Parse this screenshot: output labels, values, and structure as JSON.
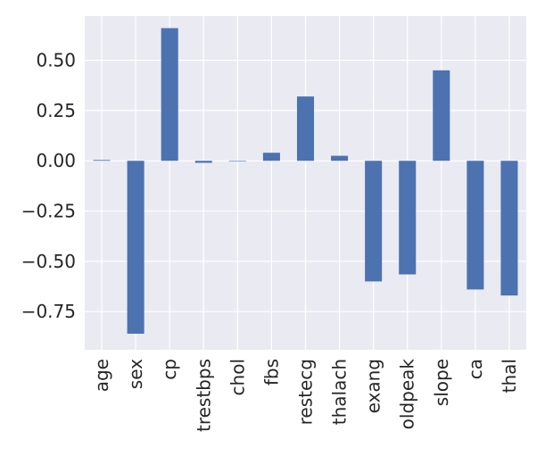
{
  "chart_data": {
    "type": "bar",
    "title": "",
    "xlabel": "",
    "ylabel": "",
    "categories": [
      "age",
      "sex",
      "cp",
      "trestbps",
      "chol",
      "fbs",
      "restecg",
      "thalach",
      "exang",
      "oldpeak",
      "slope",
      "ca",
      "thal"
    ],
    "values": [
      0.004,
      -0.86,
      0.66,
      -0.01,
      0.0,
      0.04,
      0.32,
      0.025,
      -0.6,
      -0.565,
      0.45,
      -0.64,
      -0.67
    ],
    "ylim": [
      -0.94,
      0.72
    ],
    "yticks": [
      0.5,
      0.25,
      0.0,
      -0.25,
      -0.5,
      -0.75
    ],
    "ytick_labels": [
      "0.50",
      "0.25",
      "0.00",
      "−0.25",
      "−0.50",
      "−0.75"
    ],
    "grid": true,
    "legend": "none",
    "colors": {
      "bar": "#4c72b0",
      "background": "#eaeaf2",
      "grid": "#ffffff",
      "text": "#262626"
    }
  }
}
